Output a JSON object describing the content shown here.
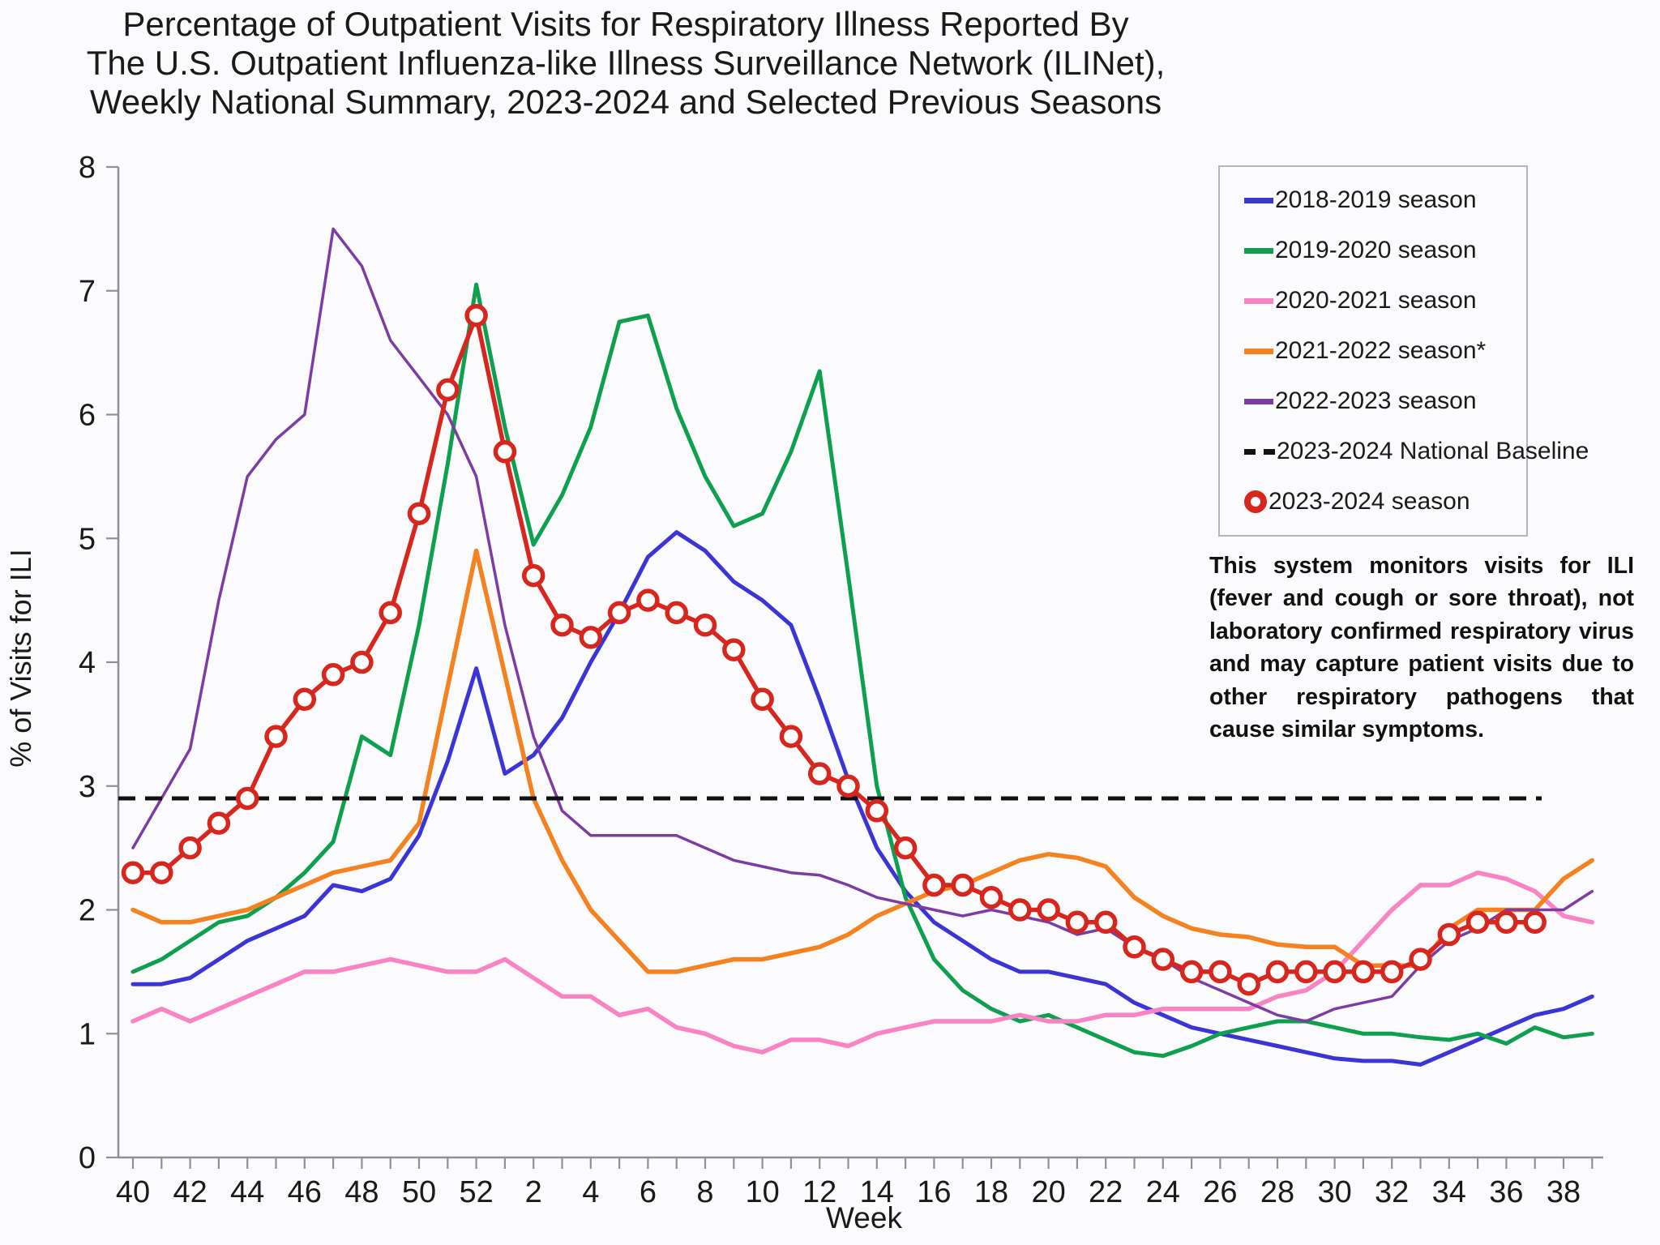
{
  "title_lines": [
    "Percentage of Outpatient Visits for Respiratory Illness Reported By",
    "The U.S. Outpatient Influenza-like Illness Surveillance Network (ILINet),",
    "Weekly National Summary, 2023-2024 and Selected Previous Seasons"
  ],
  "axes": {
    "y_label": "% of Visits for ILI",
    "x_label": "Week",
    "y_ticks": [
      0,
      1,
      2,
      3,
      4,
      5,
      6,
      7,
      8
    ],
    "x_tick_labels": [
      "40",
      "42",
      "44",
      "46",
      "48",
      "50",
      "52",
      "2",
      "4",
      "6",
      "8",
      "10",
      "12",
      "14",
      "16",
      "18",
      "20",
      "22",
      "24",
      "26",
      "28",
      "30",
      "32",
      "34",
      "36",
      "38"
    ]
  },
  "note": "This system monitors visits for ILI (fever and cough or sore throat), not laboratory confirmed respiratory virus and may capture patient visits due to other respiratory pathogens that cause similar symptoms.",
  "colors": {
    "background": "#fbfafd",
    "axis": "#8f8f96",
    "text": "#1a1a1a",
    "baseline": "#111111"
  },
  "chart_data": {
    "type": "line",
    "x_weeks": [
      40,
      41,
      42,
      43,
      44,
      45,
      46,
      47,
      48,
      49,
      50,
      51,
      52,
      1,
      2,
      3,
      4,
      5,
      6,
      7,
      8,
      9,
      10,
      11,
      12,
      13,
      14,
      15,
      16,
      17,
      18,
      19,
      20,
      21,
      22,
      23,
      24,
      25,
      26,
      27,
      28,
      29,
      30,
      31,
      32,
      33,
      34,
      35,
      36,
      37,
      38,
      39
    ],
    "ylim": [
      0,
      8
    ],
    "xlabel": "Week",
    "ylabel": "% of Visits for ILI",
    "legend_position": "upper right",
    "grid": false,
    "series": [
      {
        "name": "2018-2019 season",
        "color": "#3a35d4",
        "values": [
          1.4,
          1.4,
          1.45,
          1.6,
          1.75,
          1.85,
          1.95,
          2.2,
          2.15,
          2.25,
          2.6,
          3.2,
          3.95,
          3.1,
          3.25,
          3.55,
          4.0,
          4.4,
          4.85,
          5.05,
          4.9,
          4.65,
          4.5,
          4.3,
          3.7,
          3.05,
          2.5,
          2.15,
          1.9,
          1.75,
          1.6,
          1.5,
          1.5,
          1.45,
          1.4,
          1.25,
          1.15,
          1.05,
          1.0,
          0.95,
          0.9,
          0.85,
          0.8,
          0.78,
          0.78,
          0.75,
          0.85,
          0.95,
          1.05,
          1.15,
          1.2,
          1.3
        ]
      },
      {
        "name": "2019-2020 season",
        "color": "#0fa04f",
        "values": [
          1.5,
          1.6,
          1.75,
          1.9,
          1.95,
          2.1,
          2.3,
          2.55,
          3.4,
          3.25,
          4.3,
          5.6,
          7.05,
          5.9,
          4.95,
          5.35,
          5.9,
          6.75,
          6.8,
          6.05,
          5.5,
          5.1,
          5.2,
          5.7,
          6.35,
          4.7,
          3.0,
          2.1,
          1.6,
          1.35,
          1.2,
          1.1,
          1.15,
          1.05,
          0.95,
          0.85,
          0.82,
          0.9,
          1.0,
          1.05,
          1.1,
          1.1,
          1.05,
          1.0,
          1.0,
          0.97,
          0.95,
          1.0,
          0.92,
          1.05,
          0.97,
          1.0
        ]
      },
      {
        "name": "2020-2021 season",
        "color": "#f884c4",
        "values": [
          1.1,
          1.2,
          1.1,
          1.2,
          1.3,
          1.4,
          1.5,
          1.5,
          1.55,
          1.6,
          1.55,
          1.5,
          1.5,
          1.6,
          1.45,
          1.3,
          1.3,
          1.15,
          1.2,
          1.05,
          1.0,
          0.9,
          0.85,
          0.95,
          0.95,
          0.9,
          1.0,
          1.05,
          1.1,
          1.1,
          1.1,
          1.15,
          1.1,
          1.1,
          1.15,
          1.15,
          1.2,
          1.2,
          1.2,
          1.2,
          1.3,
          1.35,
          1.5,
          1.75,
          2.0,
          2.2,
          2.2,
          2.3,
          2.25,
          2.15,
          1.95,
          1.9
        ]
      },
      {
        "name": "2021-2022 season*",
        "color": "#f58220",
        "values": [
          2.0,
          1.9,
          1.9,
          1.95,
          2.0,
          2.1,
          2.2,
          2.3,
          2.35,
          2.4,
          2.7,
          3.8,
          4.9,
          3.9,
          2.9,
          2.4,
          2.0,
          1.75,
          1.5,
          1.5,
          1.55,
          1.6,
          1.6,
          1.65,
          1.7,
          1.8,
          1.95,
          2.05,
          2.15,
          2.2,
          2.3,
          2.4,
          2.45,
          2.42,
          2.35,
          2.1,
          1.95,
          1.85,
          1.8,
          1.78,
          1.72,
          1.7,
          1.7,
          1.55,
          1.55,
          1.55,
          1.85,
          2.0,
          2.0,
          2.0,
          2.25,
          2.4
        ]
      },
      {
        "name": "2022-2023 season",
        "color": "#7c3da2",
        "values": [
          2.5,
          2.9,
          3.3,
          4.5,
          5.5,
          5.8,
          6.0,
          7.5,
          7.2,
          6.6,
          6.3,
          6.0,
          5.5,
          4.3,
          3.4,
          2.8,
          2.6,
          2.6,
          2.6,
          2.6,
          2.5,
          2.4,
          2.35,
          2.3,
          2.28,
          2.2,
          2.1,
          2.05,
          2.0,
          1.95,
          2.0,
          1.95,
          1.9,
          1.8,
          1.85,
          1.7,
          1.6,
          1.45,
          1.35,
          1.25,
          1.15,
          1.1,
          1.2,
          1.25,
          1.3,
          1.55,
          1.75,
          1.85,
          2.0,
          2.0,
          2.0,
          2.15
        ]
      },
      {
        "name": "2023-2024 National Baseline",
        "type": "baseline",
        "color": "#111111",
        "value": 2.9
      },
      {
        "name": "2023-2024 season",
        "color": "#d7261d",
        "marker": "circle",
        "values": [
          2.3,
          2.3,
          2.5,
          2.7,
          2.9,
          3.4,
          3.7,
          3.9,
          4.0,
          4.4,
          5.2,
          6.2,
          6.8,
          5.7,
          4.7,
          4.3,
          4.2,
          4.4,
          4.5,
          4.4,
          4.3,
          4.1,
          3.7,
          3.4,
          3.1,
          3.0,
          2.8,
          2.5,
          2.2,
          2.2,
          2.1,
          2.0,
          2.0,
          1.9,
          1.9,
          1.7,
          1.6,
          1.5,
          1.5,
          1.4,
          1.5,
          1.5,
          1.5,
          1.5,
          1.5,
          1.6,
          1.8,
          1.9,
          1.9,
          1.9,
          null,
          null
        ]
      }
    ]
  }
}
